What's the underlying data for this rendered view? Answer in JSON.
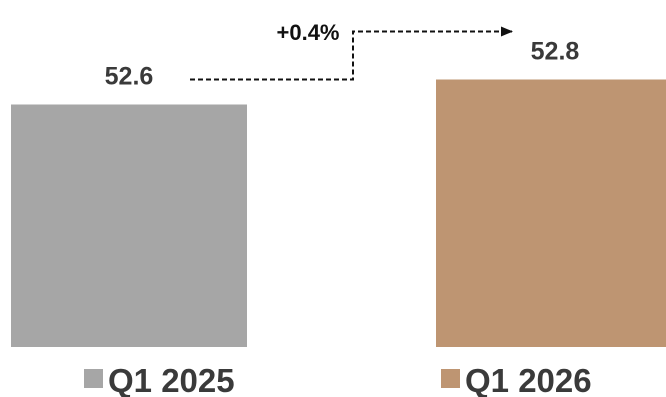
{
  "chart_data": {
    "type": "bar",
    "categories": [
      "Q1 2025",
      "Q1 2026"
    ],
    "values": [
      52.6,
      52.8
    ],
    "value_labels": [
      "52.6",
      "52.8"
    ],
    "colors": [
      "#a6a6a6",
      "#be9572"
    ],
    "change_label": "+0.4%",
    "title": "",
    "xlabel": "",
    "ylabel": ""
  }
}
